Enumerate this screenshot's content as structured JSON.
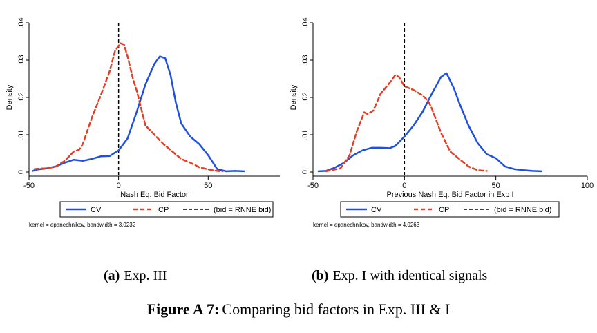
{
  "chart_data": [
    {
      "type": "line",
      "panel": "a",
      "xlabel": "Nash Eq. Bid Factor",
      "ylabel": "Density",
      "xlim": [
        -50,
        90
      ],
      "ylim": [
        0,
        0.04
      ],
      "xticks": [
        -50,
        0,
        50
      ],
      "xtick_labels": [
        "-50",
        "0",
        "50"
      ],
      "yticks": [
        0,
        0.01,
        0.02,
        0.03,
        0.04
      ],
      "ytick_labels": [
        "0",
        ".01",
        ".02",
        ".03",
        ".04"
      ],
      "vline": {
        "x": 0,
        "style": "dashed"
      },
      "series": [
        {
          "name": "CV",
          "color": "#1f4fe0",
          "dash": "solid",
          "x": [
            -48,
            -45,
            -40,
            -35,
            -30,
            -25,
            -20,
            -15,
            -10,
            -5,
            0,
            5,
            10,
            15,
            20,
            23,
            26,
            29,
            32,
            35,
            40,
            45,
            50,
            55,
            60,
            65,
            70
          ],
          "y": [
            0.0003,
            0.0007,
            0.001,
            0.0015,
            0.0025,
            0.0033,
            0.003,
            0.0035,
            0.0042,
            0.0043,
            0.0058,
            0.009,
            0.016,
            0.0235,
            0.029,
            0.031,
            0.0305,
            0.026,
            0.0185,
            0.013,
            0.0095,
            0.0075,
            0.0045,
            0.0008,
            0.0002,
            0.0003,
            0.0002
          ]
        },
        {
          "name": "CP",
          "color": "#e53e24",
          "dash": "dashed",
          "x": [
            -47,
            -45,
            -40,
            -35,
            -30,
            -25,
            -22,
            -20,
            -15,
            -10,
            -5,
            -2,
            1,
            3,
            5,
            8,
            10,
            15,
            20,
            25,
            30,
            35,
            40,
            45,
            50,
            55,
            58
          ],
          "y": [
            0.0008,
            0.0009,
            0.001,
            0.0015,
            0.003,
            0.0055,
            0.006,
            0.0075,
            0.0145,
            0.0205,
            0.027,
            0.0325,
            0.0345,
            0.0342,
            0.031,
            0.025,
            0.022,
            0.0125,
            0.01,
            0.0075,
            0.0055,
            0.0035,
            0.0025,
            0.0013,
            0.0007,
            0.0003,
            0.0002
          ]
        }
      ],
      "legend": [
        "CV",
        "CP",
        "(bid = RNNE bid)"
      ],
      "note": "kernel = epanechnikov, bandwidth = 3.0232"
    },
    {
      "type": "line",
      "panel": "b",
      "xlabel": "Previous Nash Eq. Bid Factor in Exp I",
      "ylabel": "Density",
      "xlim": [
        -50,
        100
      ],
      "ylim": [
        0,
        0.04
      ],
      "xticks": [
        -50,
        0,
        50,
        100
      ],
      "xtick_labels": [
        "-50",
        "0",
        "50",
        "100"
      ],
      "yticks": [
        0,
        0.01,
        0.02,
        0.03,
        0.04
      ],
      "ytick_labels": [
        "0",
        ".01",
        ".02",
        ".03",
        ".04"
      ],
      "vline": {
        "x": 0,
        "style": "dashed"
      },
      "series": [
        {
          "name": "CV",
          "color": "#1f4fe0",
          "dash": "solid",
          "x": [
            -47,
            -43,
            -38,
            -33,
            -28,
            -23,
            -18,
            -13,
            -8,
            -5,
            0,
            5,
            10,
            15,
            20,
            23,
            27,
            30,
            35,
            40,
            45,
            50,
            55,
            60,
            65,
            70,
            75
          ],
          "y": [
            0.0002,
            0.0003,
            0.0012,
            0.0025,
            0.0045,
            0.0058,
            0.0065,
            0.0065,
            0.0064,
            0.007,
            0.0095,
            0.0125,
            0.0162,
            0.021,
            0.0255,
            0.0265,
            0.0225,
            0.0185,
            0.0125,
            0.0078,
            0.0048,
            0.0037,
            0.0015,
            0.0008,
            0.0005,
            0.0003,
            0.0002
          ]
        },
        {
          "name": "CP",
          "color": "#e53e24",
          "dash": "dashed",
          "x": [
            -43,
            -40,
            -35,
            -30,
            -26,
            -22,
            -20,
            -17,
            -13,
            -8,
            -5,
            -3,
            0,
            5,
            10,
            13,
            15,
            20,
            25,
            30,
            35,
            40,
            45
          ],
          "y": [
            0.0002,
            0.0005,
            0.001,
            0.0045,
            0.011,
            0.016,
            0.0155,
            0.0165,
            0.021,
            0.024,
            0.026,
            0.0255,
            0.023,
            0.022,
            0.0205,
            0.019,
            0.017,
            0.0105,
            0.0055,
            0.0035,
            0.0015,
            0.0005,
            0.0003
          ]
        }
      ],
      "legend": [
        "CV",
        "CP",
        "(bid = RNNE bid)"
      ],
      "note": "kernel = epanechnikov, bandwidth = 4.0263"
    }
  ],
  "captions": {
    "a_label": "(a)",
    "a_text": "Exp. III",
    "b_label": "(b)",
    "b_text": "Exp. I with identical signals",
    "figure_label": "Figure A 7:",
    "figure_text": "Comparing bid factors in Exp. III & I"
  }
}
